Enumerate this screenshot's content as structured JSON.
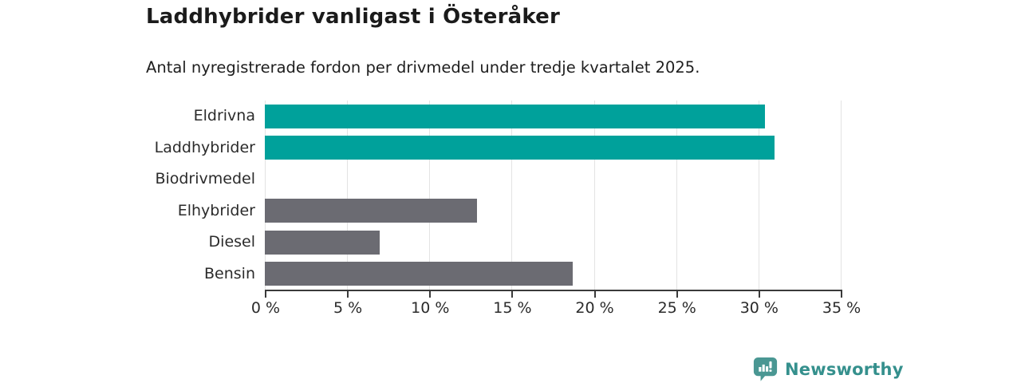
{
  "title": "Laddhybrider vanligast i Österåker",
  "subtitle": "Antal nyregistrerade fordon per drivmedel under tredje kvartalet 2025.",
  "chart_data": {
    "type": "bar",
    "orientation": "horizontal",
    "title": "Laddhybrider vanligast i Österåker",
    "subtitle": "Antal nyregistrerade fordon per drivmedel under tredje kvartalet 2025.",
    "categories": [
      "Eldrivna",
      "Laddhybrider",
      "Biodrivmedel",
      "Elhybrider",
      "Diesel",
      "Bensin"
    ],
    "values": [
      30.4,
      31,
      0,
      12.9,
      7,
      18.7
    ],
    "value_unit": "%",
    "xlim": [
      0,
      35
    ],
    "xticks": [
      0,
      5,
      10,
      15,
      20,
      25,
      30,
      35
    ],
    "xtick_labels": [
      "0 %",
      "5 %",
      "10 %",
      "15 %",
      "20 %",
      "25 %",
      "30 %",
      "35 %"
    ],
    "ylabel": "",
    "xlabel": "",
    "grid": "vertical-only",
    "legend": "none",
    "bar_colors": [
      "#00a19b",
      "#00a19b",
      "#00a19b",
      "#6b6b72",
      "#6b6b72",
      "#6b6b72"
    ]
  },
  "branding": {
    "logo_text": "Newsworthy",
    "logo_icon": "newsworthy-speech-bubble-bar-chart-icon"
  },
  "colors": {
    "accent_teal": "#00a19b",
    "neutral_gray": "#6b6b72",
    "background": "#ffffff",
    "text_dark": "#1b1b1b",
    "gridline": "#e3e3e3",
    "axis": "#3a3a3a",
    "brand_teal": "#35908d",
    "brand_icon_teal": "#4a9793"
  }
}
